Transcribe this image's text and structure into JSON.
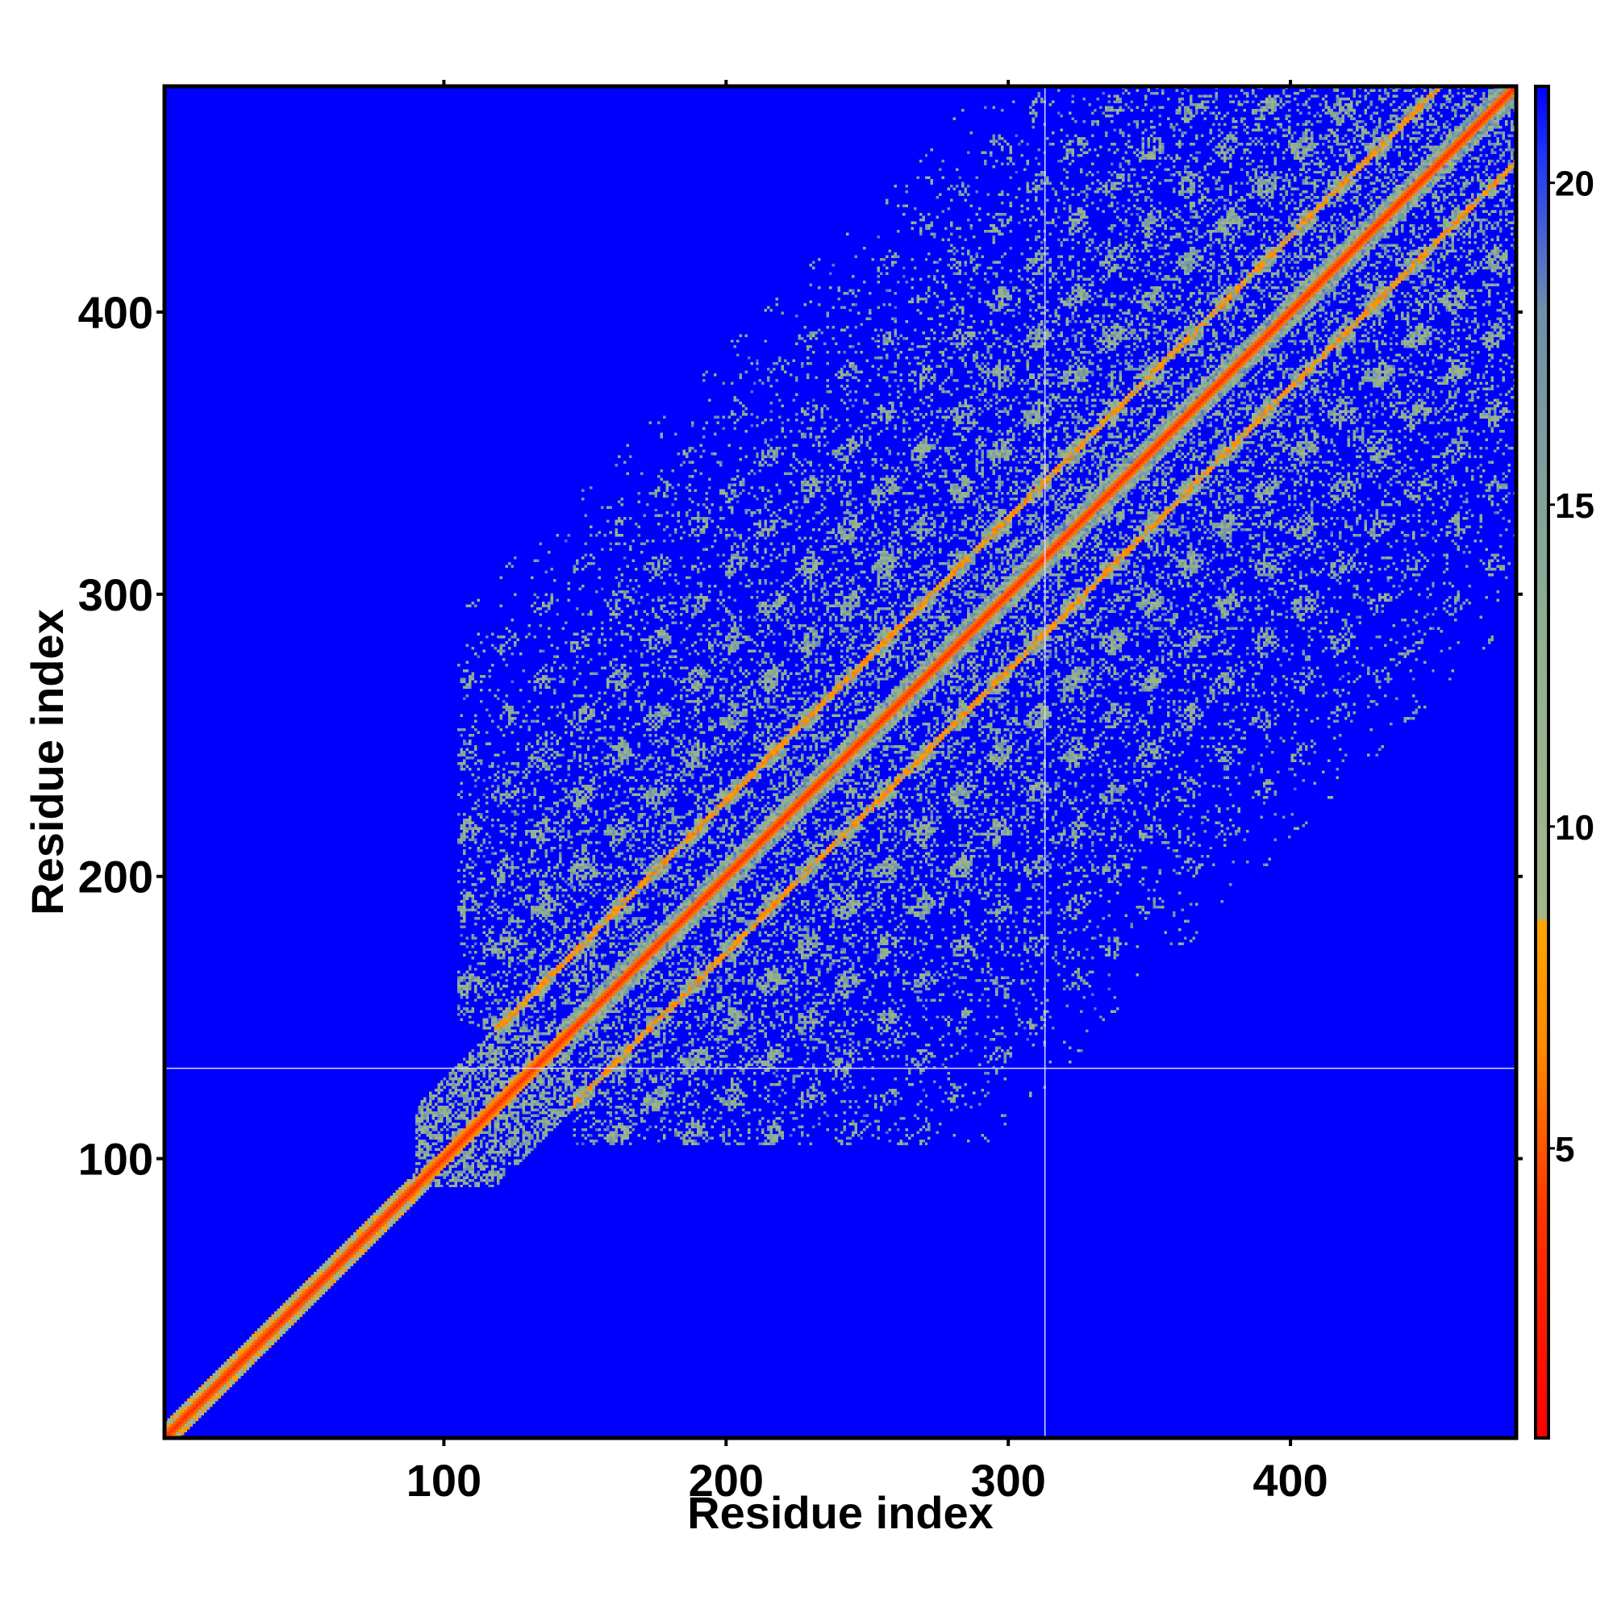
{
  "chart_data": {
    "type": "heatmap",
    "title": "",
    "xlabel": "Residue index",
    "ylabel": "Residue index",
    "xlim": [
      1,
      480
    ],
    "ylim": [
      1,
      480
    ],
    "x_ticks": [
      100,
      200,
      300,
      400
    ],
    "y_ticks": [
      100,
      200,
      300,
      400
    ],
    "colorbar": {
      "range": [
        0.5,
        21.5
      ],
      "ticks": [
        5,
        10,
        15,
        20
      ],
      "stops": [
        {
          "value": 0.5,
          "color": "#ff0000"
        },
        {
          "value": 4,
          "color": "#ff3300"
        },
        {
          "value": 6.5,
          "color": "#ff8800"
        },
        {
          "value": 8.5,
          "color": "#ffa500"
        },
        {
          "value": 8.6,
          "color": "#a6b58a"
        },
        {
          "value": 13,
          "color": "#8fb090"
        },
        {
          "value": 18,
          "color": "#6f8faa"
        },
        {
          "value": 20.5,
          "color": "#1a33ff"
        },
        {
          "value": 21.5,
          "color": "#0000ff"
        }
      ]
    },
    "background_color": "#0000ff",
    "crosshair": {
      "x": 313,
      "y": 132,
      "color": "#d8d8ff"
    },
    "structure": {
      "diagonal_value": 3.8,
      "main_band_halfwidth": 6,
      "beta_ladder_offset": 27,
      "helical_region": [
        1,
        93
      ],
      "compact_domain": [
        93,
        145
      ],
      "repeat_domain": [
        145,
        480
      ],
      "repeat_period": 27
    }
  }
}
